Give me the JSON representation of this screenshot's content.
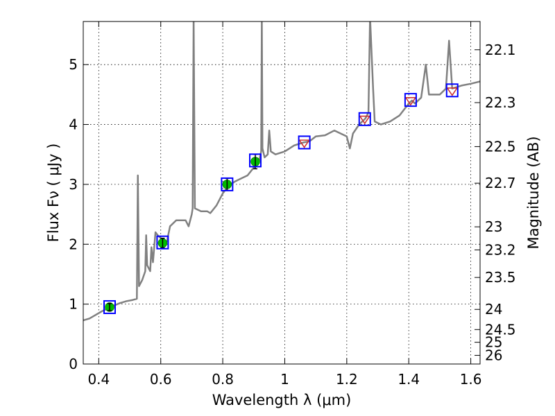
{
  "chart_data": {
    "type": "line",
    "xlabel": "Wavelength  λ (μm)",
    "ylabel": "Flux  Fν  ( μJy )",
    "ylabel_right": "Magnitude (AB)",
    "xlim": [
      0.35,
      1.63
    ],
    "ylim": [
      0,
      5.72
    ],
    "grid": true,
    "x_ticks": [
      0.4,
      0.6,
      0.8,
      1.0,
      1.2,
      1.4,
      1.6
    ],
    "x_tick_labels": [
      "0.4",
      "0.6",
      "0.8",
      "1",
      "1.2",
      "1.4",
      "1.6"
    ],
    "y_ticks": [
      0,
      1,
      2,
      3,
      4,
      5
    ],
    "y_tick_labels": [
      "0",
      "1",
      "2",
      "3",
      "4",
      "5"
    ],
    "right_ticks": [
      {
        "mag": 22.1,
        "label": "22.1"
      },
      {
        "mag": 22.3,
        "label": "22.3"
      },
      {
        "mag": 22.5,
        "label": "22.5"
      },
      {
        "mag": 22.7,
        "label": "22.7"
      },
      {
        "mag": 23.0,
        "label": "23"
      },
      {
        "mag": 23.2,
        "label": "23.2"
      },
      {
        "mag": 23.5,
        "label": "23.5"
      },
      {
        "mag": 24.0,
        "label": "24"
      },
      {
        "mag": 24.5,
        "label": "24.5"
      },
      {
        "mag": 25.0,
        "label": "25"
      },
      {
        "mag": 26.0,
        "label": "26"
      }
    ],
    "series": [
      {
        "name": "model spectrum",
        "kind": "line",
        "color": "#808080",
        "points": [
          [
            0.35,
            0.73
          ],
          [
            0.37,
            0.76
          ],
          [
            0.39,
            0.82
          ],
          [
            0.41,
            0.88
          ],
          [
            0.43,
            0.93
          ],
          [
            0.45,
            0.98
          ],
          [
            0.47,
            1.02
          ],
          [
            0.49,
            1.05
          ],
          [
            0.51,
            1.07
          ],
          [
            0.523,
            1.09
          ],
          [
            0.526,
            3.15
          ],
          [
            0.53,
            1.3
          ],
          [
            0.54,
            1.4
          ],
          [
            0.55,
            1.55
          ],
          [
            0.553,
            2.15
          ],
          [
            0.556,
            1.65
          ],
          [
            0.566,
            1.55
          ],
          [
            0.57,
            1.95
          ],
          [
            0.575,
            1.7
          ],
          [
            0.583,
            2.2
          ],
          [
            0.59,
            2.15
          ],
          [
            0.6,
            2.1
          ],
          [
            0.61,
            2.0
          ],
          [
            0.62,
            2.05
          ],
          [
            0.63,
            2.3
          ],
          [
            0.65,
            2.4
          ],
          [
            0.68,
            2.4
          ],
          [
            0.69,
            2.3
          ],
          [
            0.7,
            2.5
          ],
          [
            0.703,
            2.6
          ],
          [
            0.706,
            5.8
          ],
          [
            0.71,
            2.6
          ],
          [
            0.73,
            2.55
          ],
          [
            0.75,
            2.55
          ],
          [
            0.76,
            2.52
          ],
          [
            0.78,
            2.65
          ],
          [
            0.8,
            2.85
          ],
          [
            0.82,
            2.98
          ],
          [
            0.84,
            3.05
          ],
          [
            0.86,
            3.1
          ],
          [
            0.88,
            3.15
          ],
          [
            0.9,
            3.28
          ],
          [
            0.915,
            3.35
          ],
          [
            0.924,
            3.55
          ],
          [
            0.926,
            5.8
          ],
          [
            0.928,
            3.6
          ],
          [
            0.935,
            3.45
          ],
          [
            0.945,
            3.5
          ],
          [
            0.95,
            3.9
          ],
          [
            0.955,
            3.55
          ],
          [
            0.97,
            3.5
          ],
          [
            1.0,
            3.55
          ],
          [
            1.03,
            3.65
          ],
          [
            1.06,
            3.7
          ],
          [
            1.08,
            3.72
          ],
          [
            1.1,
            3.8
          ],
          [
            1.13,
            3.82
          ],
          [
            1.16,
            3.9
          ],
          [
            1.18,
            3.85
          ],
          [
            1.2,
            3.8
          ],
          [
            1.21,
            3.6
          ],
          [
            1.22,
            3.85
          ],
          [
            1.24,
            4.0
          ],
          [
            1.26,
            4.1
          ],
          [
            1.27,
            4.2
          ],
          [
            1.275,
            5.8
          ],
          [
            1.285,
            4.6
          ],
          [
            1.29,
            4.05
          ],
          [
            1.31,
            4.0
          ],
          [
            1.34,
            4.05
          ],
          [
            1.37,
            4.15
          ],
          [
            1.4,
            4.35
          ],
          [
            1.41,
            4.4
          ],
          [
            1.42,
            4.35
          ],
          [
            1.44,
            4.45
          ],
          [
            1.455,
            5.0
          ],
          [
            1.465,
            4.5
          ],
          [
            1.5,
            4.5
          ],
          [
            1.52,
            4.6
          ],
          [
            1.53,
            5.4
          ],
          [
            1.54,
            4.6
          ],
          [
            1.57,
            4.65
          ],
          [
            1.6,
            4.68
          ],
          [
            1.63,
            4.72
          ]
        ]
      },
      {
        "name": "observed photometry",
        "kind": "points",
        "marker": "circle",
        "color": "#00bb00",
        "points": [
          {
            "x": 0.435,
            "y": 0.95,
            "err": 0.06
          },
          {
            "x": 0.606,
            "y": 2.02,
            "err": 0.08
          },
          {
            "x": 0.814,
            "y": 3.0,
            "err": 0.1
          },
          {
            "x": 0.905,
            "y": 3.38,
            "err": 0.12
          }
        ]
      },
      {
        "name": "upper limits",
        "kind": "points",
        "marker": "triangle-down",
        "color": "#cc3333",
        "points": [
          {
            "x": 1.063,
            "y": 3.69
          },
          {
            "x": 1.258,
            "y": 4.09
          },
          {
            "x": 1.406,
            "y": 4.4
          },
          {
            "x": 1.54,
            "y": 4.56
          }
        ]
      },
      {
        "name": "model photometry",
        "kind": "points",
        "marker": "square",
        "color": "#0000ff",
        "points": [
          {
            "x": 0.435,
            "y": 0.95
          },
          {
            "x": 0.606,
            "y": 2.03
          },
          {
            "x": 0.814,
            "y": 3.0
          },
          {
            "x": 0.905,
            "y": 3.4
          },
          {
            "x": 1.063,
            "y": 3.7
          },
          {
            "x": 1.258,
            "y": 4.09
          },
          {
            "x": 1.406,
            "y": 4.41
          },
          {
            "x": 1.54,
            "y": 4.57
          }
        ]
      }
    ]
  }
}
